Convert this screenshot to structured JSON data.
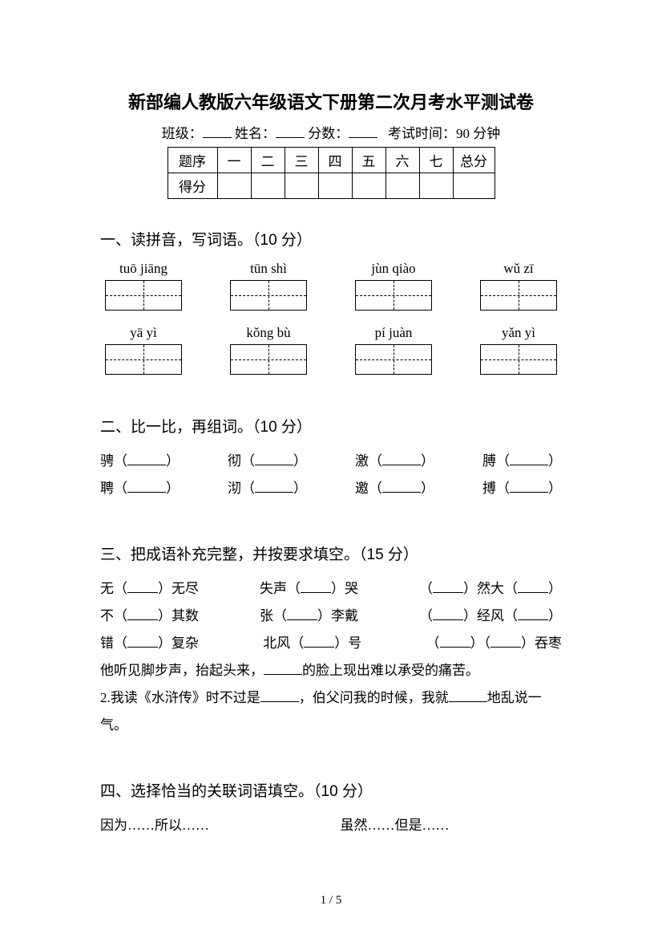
{
  "title": "新部编人教版六年级语文下册第二次月考水平测试卷",
  "infoLabels": {
    "class": "班级：",
    "name": "姓名：",
    "score": "分数：",
    "time": "考试时间：90 分钟"
  },
  "scoreTable": {
    "rowHeader1": "题序",
    "rowHeader2": "得分",
    "cols": [
      "一",
      "二",
      "三",
      "四",
      "五",
      "六",
      "七",
      "总分"
    ]
  },
  "section1": {
    "heading": "一、读拼音，写词语。（10 分）",
    "row1": [
      "tuō jiāng",
      "tūn shì",
      "jùn qiào",
      "wǔ zī"
    ],
    "row2": [
      "yā  yì",
      "kǒng bù",
      "pí juàn",
      "yǎn yì"
    ]
  },
  "section2": {
    "heading": "二、比一比，再组词。（10 分）",
    "pairs": [
      [
        "骋",
        "彻",
        "激",
        "膊"
      ],
      [
        "聘",
        "沏",
        "邀",
        "搏"
      ]
    ]
  },
  "section3": {
    "heading": "三、把成语补充完整，并按要求填空。（15 分）",
    "rows": [
      [
        {
          "pre": "无（",
          "mid": "）无尽"
        },
        {
          "pre": "失声（",
          "mid": "）哭"
        },
        {
          "pre": "（",
          "mid": "）然大（",
          "post": "）"
        }
      ],
      [
        {
          "pre": "不（",
          "mid": "）其数"
        },
        {
          "pre": "张（",
          "mid": "）李戴"
        },
        {
          "pre": "（",
          "mid": "）经风（",
          "post": "）"
        }
      ],
      [
        {
          "pre": "错（",
          "mid": "）复杂"
        },
        {
          "pre": "北风（",
          "mid": "）号"
        },
        {
          "pre": "（",
          "mid": "）（",
          "post": "）吞枣"
        }
      ]
    ],
    "line1a": "他听见脚步声，抬起头来，",
    "line1b": "的脸上现出难以承受的痛苦。",
    "line2a": "2.我读《水浒传》时不过是",
    "line2b": "，伯父问我的时候，我就",
    "line2c": "地乱说一",
    "line2d": "气。"
  },
  "section4": {
    "heading": "四、选择恰当的关联词语填空。（10 分）",
    "optA": "因为……所以……",
    "optB": "虽然……但是……"
  },
  "pager": "1 / 5"
}
